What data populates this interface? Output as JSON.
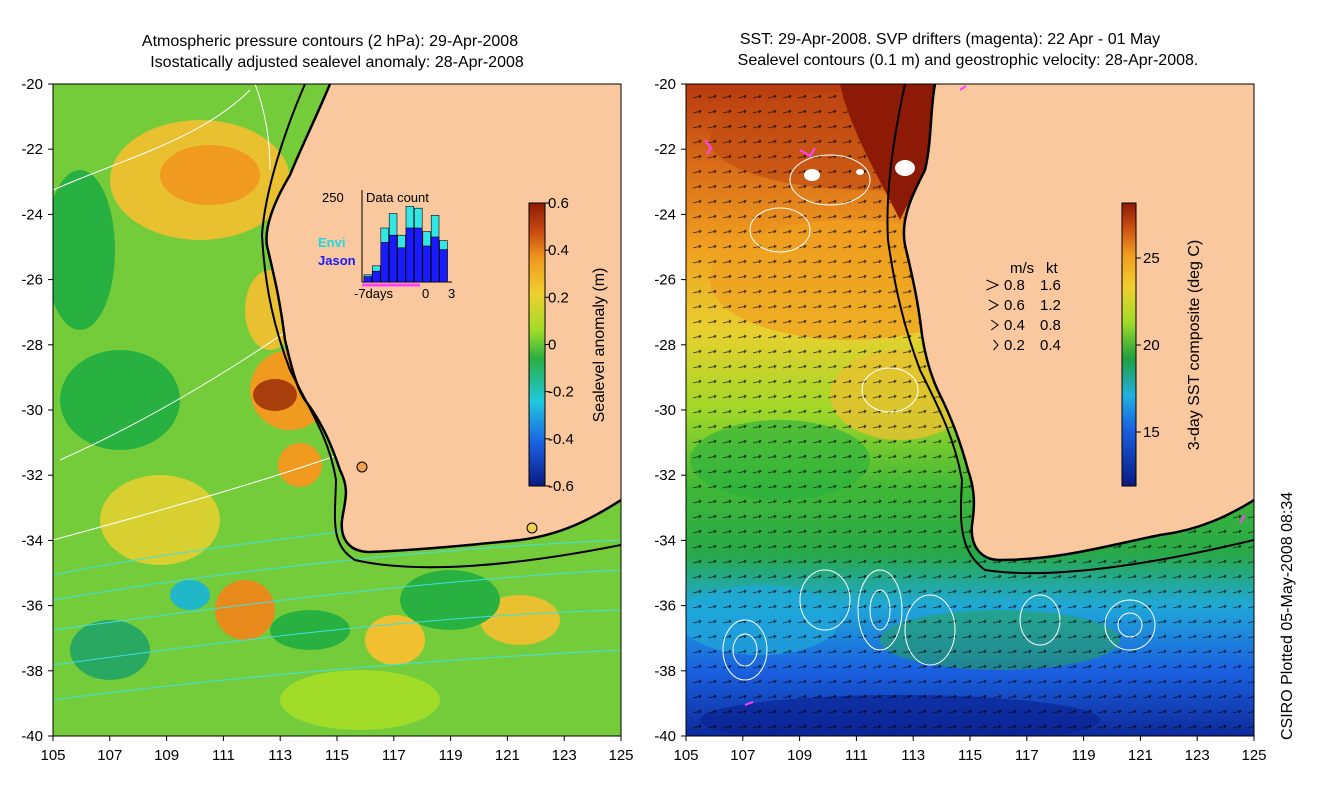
{
  "left_panel": {
    "title_line1": "Atmospheric pressure contours (2 hPa): 29-Apr-2008",
    "title_line2": "Isostatically adjusted sealevel anomaly: 28-Apr-2008",
    "lat_ticks": [
      "-20",
      "-22",
      "-24",
      "-26",
      "-28",
      "-30",
      "-32",
      "-34",
      "-36",
      "-38",
      "-40"
    ],
    "lon_ticks": [
      "105",
      "107",
      "109",
      "111",
      "113",
      "115",
      "117",
      "119",
      "121",
      "123",
      "125"
    ],
    "colorbar": {
      "label": "Sealevel anomaly (m)",
      "ticks": [
        "0.6",
        "0.4",
        "0.2",
        "0",
        "-0.2",
        "-0.4",
        "-0.6"
      ],
      "range": [
        -0.6,
        0.6
      ]
    },
    "inset": {
      "title": "Data count",
      "ymax_label": "250",
      "legend_envi": "Envi",
      "legend_jason": "Jason",
      "x_labels": [
        "-7days",
        "0",
        "3"
      ],
      "envi_color": "#33e6e6",
      "jason_color": "#1a1aff",
      "bars": [
        {
          "envi": 20,
          "jason": 15
        },
        {
          "envi": 45,
          "jason": 30
        },
        {
          "envi": 150,
          "jason": 110
        },
        {
          "envi": 190,
          "jason": 130
        },
        {
          "envi": 130,
          "jason": 95
        },
        {
          "envi": 210,
          "jason": 150
        },
        {
          "envi": 205,
          "jason": 150
        },
        {
          "envi": 140,
          "jason": 100
        },
        {
          "envi": 185,
          "jason": 125
        },
        {
          "envi": 115,
          "jason": 90
        }
      ]
    }
  },
  "right_panel": {
    "title_line1": "SST: 29-Apr-2008. SVP drifters (magenta): 22 Apr - 01 May",
    "title_line2": "Sealevel contours (0.1 m) and geostrophic velocity: 28-Apr-2008.",
    "lat_ticks": [
      "-20",
      "-22",
      "-24",
      "-26",
      "-28",
      "-30",
      "-32",
      "-34",
      "-36",
      "-38",
      "-40"
    ],
    "lon_ticks": [
      "105",
      "107",
      "109",
      "111",
      "113",
      "115",
      "117",
      "119",
      "121",
      "123",
      "125"
    ],
    "colorbar": {
      "label": "3-day SST composite (deg C)",
      "ticks": [
        "25",
        "20",
        "15"
      ]
    },
    "velocity_legend": {
      "header_ms": "m/s",
      "header_kt": "kt",
      "rows": [
        {
          "ms": "0.8",
          "kt": "1.6"
        },
        {
          "ms": "0.6",
          "kt": "1.2"
        },
        {
          "ms": "0.4",
          "kt": "0.8"
        },
        {
          "ms": "0.2",
          "kt": "0.4"
        }
      ]
    }
  },
  "footer": {
    "credit": "CSIRO Plotted 05-May-2008 08:34"
  },
  "colors": {
    "land": "#f9c89e",
    "coast": "#000000",
    "sla_scale": [
      "#0a1a80",
      "#1a60e0",
      "#20c8e0",
      "#28b040",
      "#a0dc28",
      "#f0d030",
      "#f09a20",
      "#c84a10",
      "#8c1a06"
    ],
    "sst_scale": [
      "#0a1a80",
      "#1a60e0",
      "#20b0e0",
      "#20a040",
      "#a0dc28",
      "#f0d030",
      "#f09a20",
      "#c84a10",
      "#8c1a06"
    ]
  }
}
